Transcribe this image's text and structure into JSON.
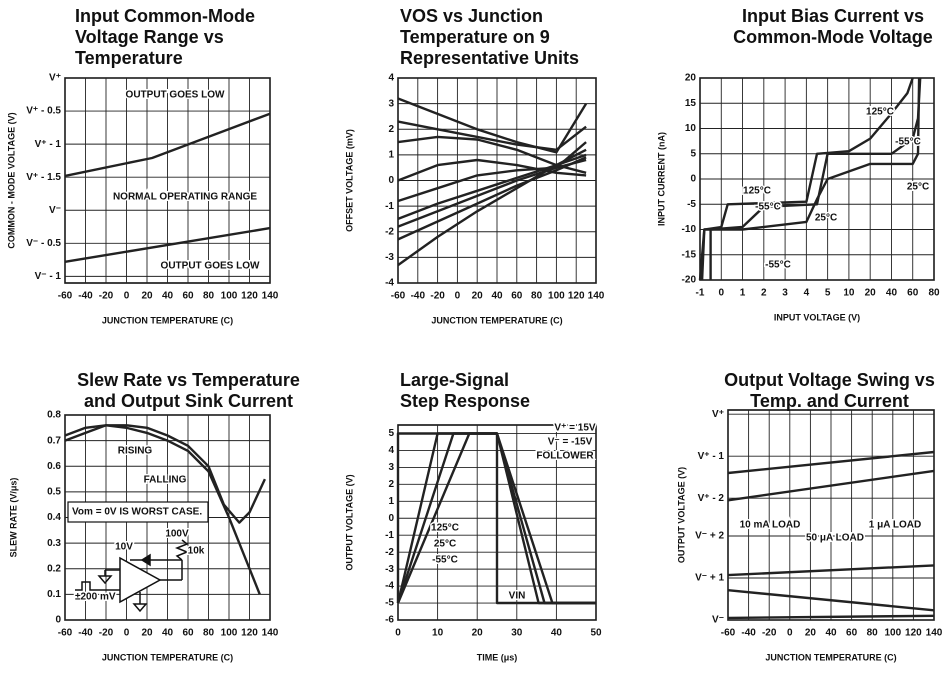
{
  "chart_data": [
    {
      "type": "line",
      "title": "Input Common-Mode Voltage Range vs Temperature",
      "x_label": "JUNCTION TEMPERATURE (C)",
      "y_label": "COMMON - MODE VOLTAGE (V)",
      "xlim": [
        -60,
        140
      ],
      "ylim": [
        -3.1,
        0
      ],
      "xticks": [
        -60,
        -40,
        -20,
        0,
        20,
        40,
        60,
        80,
        100,
        120,
        140
      ],
      "yticks": [
        {
          "value": 0,
          "label": "V⁺"
        },
        {
          "value": -0.5,
          "label": "V⁺ - 0.5"
        },
        {
          "value": -1,
          "label": "V⁺ - 1"
        },
        {
          "value": -1.5,
          "label": "V⁺ - 1.5"
        },
        {
          "value": -2,
          "label": "V⁻"
        },
        {
          "value": -2.5,
          "label": "V⁻ - 0.5"
        },
        {
          "value": -3,
          "label": "V⁻ - 1"
        }
      ],
      "grid": true,
      "color": "#222",
      "series": [
        {
          "x": [
            -60,
            25,
            140
          ],
          "values": [
            -1.48,
            -1.21,
            -0.54
          ]
        },
        {
          "x": [
            -60,
            140
          ],
          "values": [
            -2.78,
            -2.27
          ]
        }
      ],
      "annotations": [
        "OUTPUT GOES LOW",
        "NORMAL OPERATING RANGE",
        "OUTPUT GOES LOW"
      ]
    },
    {
      "type": "line",
      "title": "VOS vs Junction Temperature on 9 Representative Units",
      "x_label": "JUNCTION TEMPERATURE (C)",
      "y_label": "OFFSET VOLTAGE (mV)",
      "xlim": [
        -60,
        140
      ],
      "ylim": [
        -4,
        4
      ],
      "xticks": [
        -60,
        -40,
        -20,
        0,
        20,
        40,
        60,
        80,
        100,
        120,
        140
      ],
      "yticks": [
        -4,
        -3,
        -2,
        -1,
        0,
        1,
        2,
        3,
        4
      ],
      "grid": true,
      "color": "#222",
      "x": [
        -60,
        -20,
        20,
        60,
        100,
        130
      ],
      "series": [
        {
          "values": [
            3.2,
            2.6,
            2.0,
            1.5,
            1.1,
            3.0
          ]
        },
        {
          "values": [
            2.3,
            2.0,
            1.7,
            1.4,
            1.2,
            2.1
          ]
        },
        {
          "values": [
            1.5,
            1.7,
            1.6,
            1.2,
            0.6,
            1.0
          ]
        },
        {
          "values": [
            0.0,
            0.6,
            0.8,
            0.6,
            0.3,
            0.2
          ]
        },
        {
          "values": [
            -0.8,
            -0.3,
            0.2,
            0.4,
            0.5,
            0.8
          ]
        },
        {
          "values": [
            -1.5,
            -0.9,
            -0.4,
            0.1,
            0.6,
            1.2
          ]
        },
        {
          "values": [
            -1.8,
            -1.2,
            -0.6,
            0.0,
            0.5,
            1.5
          ]
        },
        {
          "values": [
            -2.3,
            -1.6,
            -0.9,
            -0.2,
            0.4,
            0.9
          ]
        },
        {
          "values": [
            -3.3,
            -2.2,
            -1.2,
            -0.3,
            0.6,
            0.3
          ]
        }
      ]
    },
    {
      "type": "line",
      "title": "Input Bias Current vs Common-Mode Voltage",
      "x_label": "INPUT VOLTAGE (V)",
      "y_label": "INPUT CURRENT (nA)",
      "xlim": [
        -1,
        80
      ],
      "x_scale": "segmented",
      "ylim": [
        -20,
        20
      ],
      "xticks": [
        -1,
        0,
        1,
        2,
        3,
        4,
        5,
        10,
        20,
        40,
        60,
        80
      ],
      "yticks": [
        -20,
        -15,
        -10,
        -5,
        0,
        5,
        10,
        15,
        20
      ],
      "grid": true,
      "color": "#222",
      "series": [
        {
          "name": "125°C",
          "x": [
            -1,
            -0.8,
            0,
            0.3,
            4,
            4.5,
            10,
            20,
            40,
            55,
            60
          ],
          "values": [
            -20,
            -10,
            -9.5,
            -5,
            -4.5,
            5,
            5.5,
            8,
            13,
            17,
            20
          ]
        },
        {
          "name": "-55°C",
          "x": [
            -0.5,
            -0.5,
            1,
            2,
            4.5,
            5,
            40,
            60,
            65,
            67
          ],
          "values": [
            -20,
            -10,
            -9.5,
            -5.5,
            -5,
            5,
            5,
            8,
            12,
            20
          ]
        },
        {
          "name": "25°C",
          "x": [
            -0.9,
            -0.8,
            1,
            4,
            4.5,
            5,
            20,
            60,
            65,
            66
          ],
          "values": [
            -20,
            -10,
            -10,
            -8.5,
            -4,
            0,
            3,
            3,
            5,
            20
          ]
        }
      ],
      "annotations": [
        "125°C",
        "-55°C",
        "-55°C",
        "25°C"
      ]
    },
    {
      "type": "line",
      "title": "Slew Rate vs Temperature and Output Sink Current",
      "x_label": "JUNCTION TEMPERATURE (C)",
      "y_label": "SLEW RATE (V/μs)",
      "xlim": [
        -60,
        140
      ],
      "ylim": [
        0,
        0.8
      ],
      "xticks": [
        -60,
        -40,
        -20,
        0,
        20,
        40,
        60,
        80,
        100,
        120,
        140
      ],
      "yticks": [
        0,
        0.1,
        0.2,
        0.3,
        0.4,
        0.5,
        0.6,
        0.7,
        0.8
      ],
      "grid": true,
      "color": "#222",
      "series": [
        {
          "name": "RISING",
          "x": [
            -60,
            -40,
            -20,
            0,
            20,
            40,
            60,
            80,
            95,
            110,
            120,
            135
          ],
          "values": [
            0.7,
            0.73,
            0.76,
            0.76,
            0.75,
            0.72,
            0.68,
            0.6,
            0.45,
            0.38,
            0.42,
            0.55
          ]
        },
        {
          "name": "FALLING",
          "x": [
            -60,
            -40,
            -20,
            0,
            20,
            40,
            60,
            80,
            100,
            115,
            130
          ],
          "values": [
            0.72,
            0.75,
            0.76,
            0.75,
            0.73,
            0.7,
            0.66,
            0.58,
            0.4,
            0.25,
            0.1
          ]
        }
      ],
      "annotations": [
        "Vom = 0V IS WORST CASE.",
        "100V",
        "10V",
        "10k",
        "±200 mV"
      ]
    },
    {
      "type": "line",
      "title": "Large-Signal Step Response",
      "x_label": "TIME (μs)",
      "y_label": "OUTPUT VOLTAGE (V)",
      "xlim": [
        0,
        50
      ],
      "ylim": [
        -6,
        5.5
      ],
      "xticks": [
        0,
        10,
        20,
        30,
        40,
        50
      ],
      "yticks": [
        -6,
        -5,
        -4,
        -3,
        -2,
        -1,
        0,
        1,
        2,
        3,
        4,
        5
      ],
      "grid": true,
      "color": "#222",
      "series": [
        {
          "name": "125°C",
          "x": [
            0,
            10,
            25,
            35.5,
            50
          ],
          "values": [
            -5,
            5,
            5,
            -5,
            -5
          ]
        },
        {
          "name": "25°C",
          "x": [
            0,
            14,
            25,
            37,
            50
          ],
          "values": [
            -5,
            5,
            5,
            -5,
            -5
          ]
        },
        {
          "name": "-55°C",
          "x": [
            0,
            18,
            25,
            39,
            50
          ],
          "values": [
            -5,
            5,
            5,
            -5,
            -5
          ]
        },
        {
          "name": "VIN",
          "x": [
            0,
            0,
            25,
            25,
            50
          ],
          "values": [
            -5,
            5,
            5,
            -5,
            -5
          ]
        }
      ],
      "annotations": [
        "V⁺ = 15V",
        "V⁻ = -15V",
        "FOLLOWER"
      ]
    },
    {
      "type": "line",
      "title": "Output Voltage Swing vs Temp. and Current",
      "x_label": "JUNCTION TEMPERATURE (C)",
      "y_label": "OUTPUT VOLTAGE (V)",
      "xlim": [
        -60,
        140
      ],
      "ylim": [
        -4.9,
        0.1
      ],
      "xticks": [
        -60,
        -40,
        -20,
        0,
        20,
        40,
        60,
        80,
        100,
        120,
        140
      ],
      "yticks": [
        {
          "value": 0,
          "label": "V⁺"
        },
        {
          "value": -1,
          "label": "V⁺ - 1"
        },
        {
          "value": -2,
          "label": "V⁺ - 2"
        },
        {
          "value": -2.9,
          "label": "V⁻ + 2"
        },
        {
          "value": -3.9,
          "label": "V⁻ + 1"
        },
        {
          "value": -4.9,
          "label": "V⁻"
        }
      ],
      "grid": true,
      "color": "#222",
      "series": [
        {
          "name": "1 μA LOAD",
          "x": [
            -60,
            140
          ],
          "values": [
            -1.4,
            -0.9
          ]
        },
        {
          "name": "10 mA LOAD",
          "x": [
            -60,
            140
          ],
          "values": [
            -2.05,
            -1.35
          ]
        },
        {
          "name": "50 μA LOAD",
          "x": [
            -60,
            140
          ],
          "values": [
            -3.83,
            -3.6
          ]
        },
        {
          "x": [
            -60,
            140
          ],
          "values": [
            -4.19,
            -4.67
          ]
        },
        {
          "x": [
            -60,
            140
          ],
          "values": [
            -4.85,
            -4.8
          ]
        }
      ]
    }
  ]
}
